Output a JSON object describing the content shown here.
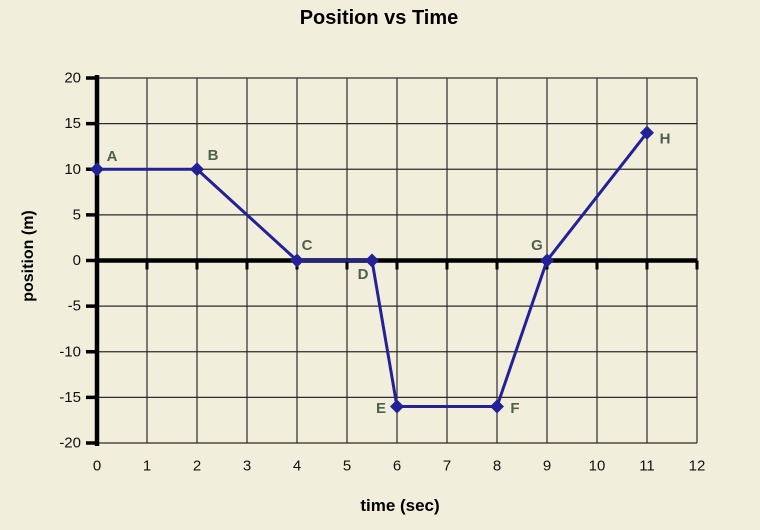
{
  "colors": {
    "background": "#f1efdc",
    "grid": "#2b2b2b",
    "axis": "#000000",
    "line": "#232196",
    "marker": "#232196",
    "point_label": "#50604f",
    "tick_label": "#111111",
    "title": "#000000"
  },
  "chart_data": {
    "type": "line",
    "title": "Position vs Time",
    "xlabel": "time (sec)",
    "ylabel": "position (m)",
    "xlim": [
      0,
      12
    ],
    "ylim": [
      -20,
      20
    ],
    "xticks": [
      0,
      1,
      2,
      3,
      4,
      5,
      6,
      7,
      8,
      9,
      10,
      11,
      12
    ],
    "yticks": [
      -20,
      -15,
      -10,
      -5,
      0,
      5,
      10,
      15,
      20
    ],
    "grid": true,
    "legend": "none",
    "marker_shape": "diamond",
    "series": [
      {
        "name": "position",
        "points": [
          {
            "label": "A",
            "x": 0,
            "y": 10
          },
          {
            "label": "B",
            "x": 2,
            "y": 10
          },
          {
            "label": "C",
            "x": 4,
            "y": 0
          },
          {
            "label": "D",
            "x": 5.5,
            "y": 0
          },
          {
            "label": "E",
            "x": 6,
            "y": -16
          },
          {
            "label": "F",
            "x": 8,
            "y": -16
          },
          {
            "label": "G",
            "x": 9,
            "y": 0
          },
          {
            "label": "H",
            "x": 11,
            "y": 14
          }
        ]
      }
    ],
    "label_offsets": {
      "A": [
        15,
        -13
      ],
      "B": [
        16,
        -14
      ],
      "C": [
        10,
        -15
      ],
      "D": [
        -9,
        14
      ],
      "E": [
        -16,
        2
      ],
      "F": [
        18,
        2
      ],
      "G": [
        -10,
        -15
      ],
      "H": [
        18,
        6
      ]
    }
  }
}
